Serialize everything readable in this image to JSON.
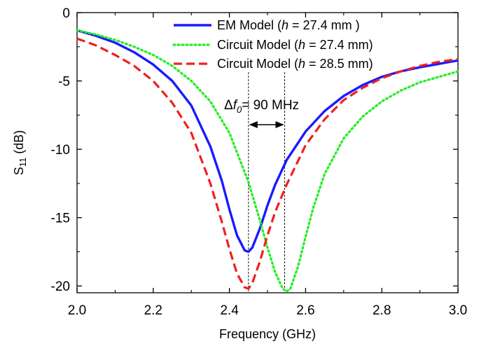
{
  "chart_data": {
    "type": "line",
    "title": "",
    "xlabel": "Frequency (GHz)",
    "ylabel": "S11 (dB)",
    "ylabel_parts": {
      "main": "S",
      "sub": "11",
      "rest": " (dB)"
    },
    "xlim": [
      2.0,
      3.0
    ],
    "ylim": [
      -20.5,
      0
    ],
    "xticks": [
      2.0,
      2.2,
      2.4,
      2.6,
      2.8,
      3.0
    ],
    "xtick_labels": [
      "2.0",
      "2.2",
      "2.4",
      "2.6",
      "2.8",
      "3.0"
    ],
    "yticks": [
      0,
      -5,
      -10,
      -15,
      -20
    ],
    "ytick_labels": [
      "0",
      "-5",
      "-10",
      "-15",
      "-20"
    ],
    "grid": false,
    "legend_position": "top-right",
    "series": [
      {
        "name": "EM Model (h = 27.4 mm )",
        "legend": {
          "pre": "EM Model (",
          "italic": "h",
          "post": " = 27.4 mm )"
        },
        "color": "#1a1aff",
        "style": "solid",
        "x": [
          2.0,
          2.05,
          2.1,
          2.15,
          2.2,
          2.25,
          2.3,
          2.35,
          2.38,
          2.4,
          2.42,
          2.44,
          2.45,
          2.46,
          2.48,
          2.5,
          2.52,
          2.55,
          2.6,
          2.65,
          2.7,
          2.75,
          2.8,
          2.85,
          2.9,
          2.95,
          3.0
        ],
        "y": [
          -1.3,
          -1.7,
          -2.2,
          -2.9,
          -3.8,
          -5.0,
          -6.8,
          -9.8,
          -12.3,
          -14.4,
          -16.3,
          -17.4,
          -17.5,
          -17.2,
          -15.8,
          -14.1,
          -12.6,
          -10.8,
          -8.7,
          -7.2,
          -6.1,
          -5.3,
          -4.7,
          -4.3,
          -4.0,
          -3.75,
          -3.5
        ]
      },
      {
        "name": "Circuit Model (h = 27.4 mm)",
        "legend": {
          "pre": "Circuit Model (",
          "italic": "h",
          "post": " = 27.4 mm)"
        },
        "color": "#22ee22",
        "style": "dotted",
        "x": [
          2.0,
          2.05,
          2.1,
          2.15,
          2.2,
          2.25,
          2.3,
          2.35,
          2.4,
          2.45,
          2.48,
          2.5,
          2.52,
          2.54,
          2.55,
          2.56,
          2.58,
          2.6,
          2.62,
          2.65,
          2.7,
          2.75,
          2.8,
          2.85,
          2.9,
          2.95,
          3.0
        ],
        "y": [
          -1.3,
          -1.6,
          -2.0,
          -2.5,
          -3.1,
          -3.9,
          -5.0,
          -6.5,
          -8.8,
          -12.4,
          -15.2,
          -17.2,
          -19.0,
          -20.2,
          -20.4,
          -20.2,
          -18.6,
          -16.4,
          -14.3,
          -11.8,
          -9.2,
          -7.6,
          -6.5,
          -5.7,
          -5.1,
          -4.7,
          -4.3
        ]
      },
      {
        "name": "Circuit Model (h = 28.5 mm)",
        "legend": {
          "pre": "Circuit Model (",
          "italic": "h",
          "post": " = 28.5 mm)"
        },
        "color": "#ee2020",
        "style": "dashed",
        "x": [
          2.0,
          2.05,
          2.1,
          2.15,
          2.2,
          2.25,
          2.3,
          2.35,
          2.38,
          2.4,
          2.42,
          2.44,
          2.45,
          2.46,
          2.48,
          2.5,
          2.52,
          2.55,
          2.6,
          2.65,
          2.7,
          2.75,
          2.8,
          2.85,
          2.9,
          2.95,
          3.0
        ],
        "y": [
          -1.9,
          -2.4,
          -3.1,
          -3.9,
          -5.0,
          -6.6,
          -8.8,
          -12.5,
          -15.3,
          -17.3,
          -19.1,
          -20.1,
          -20.2,
          -19.8,
          -18.2,
          -16.3,
          -14.6,
          -12.6,
          -9.7,
          -7.8,
          -6.4,
          -5.5,
          -4.8,
          -4.3,
          -3.9,
          -3.6,
          -3.4
        ]
      }
    ],
    "annotation": {
      "text_delta": "Δ",
      "text_f": "f",
      "text_sub": "0",
      "text_rest": "= 90 MHz",
      "x_start": 2.45,
      "x_end": 2.545,
      "y_arrow": -8.2
    }
  }
}
